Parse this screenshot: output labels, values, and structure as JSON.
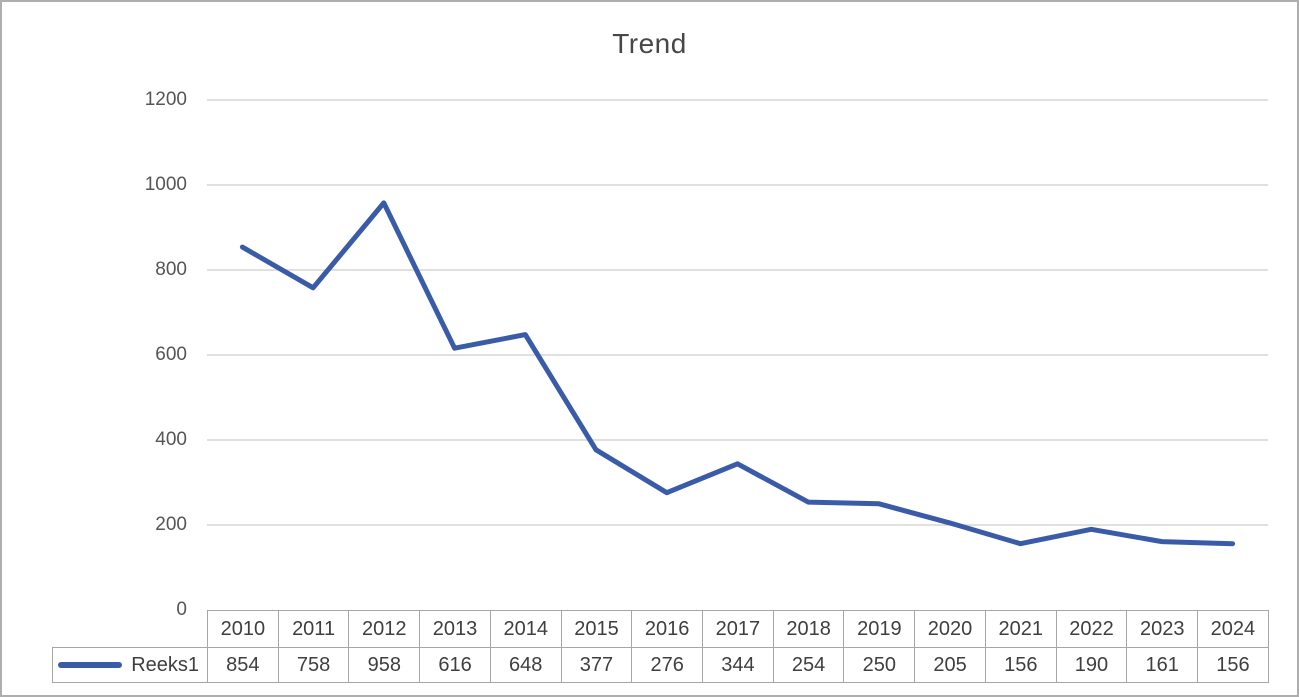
{
  "chart": {
    "title": "Trend"
  },
  "chart_data": {
    "type": "line",
    "title": "Trend",
    "xlabel": "",
    "ylabel": "",
    "categories": [
      "2010",
      "2011",
      "2012",
      "2013",
      "2014",
      "2015",
      "2016",
      "2017",
      "2018",
      "2019",
      "2020",
      "2021",
      "2022",
      "2023",
      "2024"
    ],
    "series": [
      {
        "name": "Reeks1",
        "values": [
          854,
          758,
          958,
          616,
          648,
          377,
          276,
          344,
          254,
          250,
          205,
          156,
          190,
          161,
          156
        ],
        "color": "#3a5ca8"
      }
    ],
    "ylim": [
      0,
      1200
    ],
    "yticks": [
      0,
      200,
      400,
      600,
      800,
      1000,
      1200
    ],
    "grid": true,
    "legend_position": "data-table-left",
    "data_table_shown": true
  },
  "colors": {
    "line": "#3a5ca8",
    "gridline": "#d6d6d6",
    "table_border": "#a6a6a6",
    "title_text": "#474747",
    "tick_text": "#555555",
    "cell_text": "#3f3f3f",
    "outer_border": "#aeaeae",
    "background": "#ffffff"
  }
}
